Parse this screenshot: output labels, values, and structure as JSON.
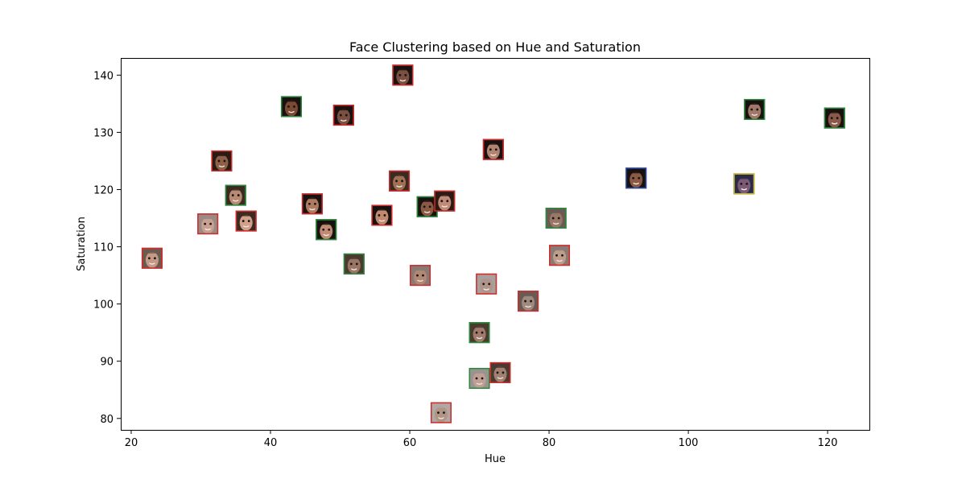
{
  "chart_data": {
    "type": "scatter",
    "title": "Face Clustering based on Hue and Saturation",
    "xlabel": "Hue",
    "ylabel": "Saturation",
    "xlim": [
      18.5,
      126
    ],
    "ylim": [
      78,
      143
    ],
    "xticks": [
      20,
      40,
      60,
      80,
      100,
      120
    ],
    "yticks": [
      80,
      90,
      100,
      110,
      120,
      130,
      140
    ],
    "grid": false,
    "legend": "none",
    "marker": "face-thumbnail",
    "points": [
      {
        "x": 23,
        "y": 108,
        "frame": "#d42a2a",
        "skin": "#c49a86",
        "hair": "#6b5a50"
      },
      {
        "x": 31,
        "y": 114,
        "frame": "#d42a2a",
        "skin": "#c8a090",
        "hair": "#9a8a84"
      },
      {
        "x": 33,
        "y": 125,
        "frame": "#d42a2a",
        "skin": "#8e6048",
        "hair": "#2a1a14"
      },
      {
        "x": 35,
        "y": 119,
        "frame": "#2a8a3a",
        "skin": "#b88a74",
        "hair": "#3a2a22"
      },
      {
        "x": 36.5,
        "y": 114.5,
        "frame": "#d42a2a",
        "skin": "#d0a08a",
        "hair": "#3a2a22"
      },
      {
        "x": 43,
        "y": 134.5,
        "frame": "#2a8a3a",
        "skin": "#7a4a34",
        "hair": "#1a1210"
      },
      {
        "x": 46,
        "y": 117.5,
        "frame": "#d42a2a",
        "skin": "#b07a60",
        "hair": "#1a1210"
      },
      {
        "x": 48,
        "y": 113,
        "frame": "#2a8a3a",
        "skin": "#c08a74",
        "hair": "#1a1210"
      },
      {
        "x": 50.5,
        "y": 133,
        "frame": "#d42a2a",
        "skin": "#7a5040",
        "hair": "#1a1210"
      },
      {
        "x": 52,
        "y": 107,
        "frame": "#2a8a3a",
        "skin": "#9a7464",
        "hair": "#4a3a30"
      },
      {
        "x": 56,
        "y": 115.5,
        "frame": "#d42a2a",
        "skin": "#c08a70",
        "hair": "#1a1210"
      },
      {
        "x": 58.5,
        "y": 121.5,
        "frame": "#d42a2a",
        "skin": "#a07054",
        "hair": "#3a2a22"
      },
      {
        "x": 59,
        "y": 140,
        "frame": "#d42a2a",
        "skin": "#7a5040",
        "hair": "#1a1210"
      },
      {
        "x": 61.5,
        "y": 105,
        "frame": "#d42a2a",
        "skin": "#b08874",
        "hair": "#8a7a74"
      },
      {
        "x": 62.5,
        "y": 117,
        "frame": "#2a8a3a",
        "skin": "#8a5a44",
        "hair": "#1a1210"
      },
      {
        "x": 65,
        "y": 118,
        "frame": "#d42a2a",
        "skin": "#c08a78",
        "hair": "#2a1a14"
      },
      {
        "x": 64.5,
        "y": 81,
        "frame": "#d42a2a",
        "skin": "#b09484",
        "hair": "#b0a8a4"
      },
      {
        "x": 70,
        "y": 95,
        "frame": "#2a8a3a",
        "skin": "#a07a6a",
        "hair": "#4a3a30"
      },
      {
        "x": 70,
        "y": 87,
        "frame": "#2a8a3a",
        "skin": "#c0a094",
        "hair": "#9a9490"
      },
      {
        "x": 71,
        "y": 103.5,
        "frame": "#d42a2a",
        "skin": "#b0948a",
        "hair": "#a8a09c"
      },
      {
        "x": 72,
        "y": 127,
        "frame": "#d42a2a",
        "skin": "#b08470",
        "hair": "#1a1210"
      },
      {
        "x": 73,
        "y": 88,
        "frame": "#d42a2a",
        "skin": "#a08070",
        "hair": "#4a3a30"
      },
      {
        "x": 77,
        "y": 100.5,
        "frame": "#d42a2a",
        "skin": "#a08a80",
        "hair": "#6a5a54"
      },
      {
        "x": 81,
        "y": 115,
        "frame": "#2a8a3a",
        "skin": "#9a7868",
        "hair": "#6a5a54"
      },
      {
        "x": 81.5,
        "y": 108.5,
        "frame": "#d42a2a",
        "skin": "#c09c8c",
        "hair": "#8a7a74"
      },
      {
        "x": 92.5,
        "y": 122,
        "frame": "#2a4aa8",
        "skin": "#8a5a44",
        "hair": "#1a1210"
      },
      {
        "x": 108,
        "y": 121,
        "frame": "#c8b82a",
        "skin": "#7a5a74",
        "hair": "#2a2a4a"
      },
      {
        "x": 109.5,
        "y": 134,
        "frame": "#2a8a3a",
        "skin": "#a07868",
        "hair": "#1a1210"
      },
      {
        "x": 121,
        "y": 132.5,
        "frame": "#2a8a3a",
        "skin": "#8a5a48",
        "hair": "#1a1210"
      }
    ]
  }
}
